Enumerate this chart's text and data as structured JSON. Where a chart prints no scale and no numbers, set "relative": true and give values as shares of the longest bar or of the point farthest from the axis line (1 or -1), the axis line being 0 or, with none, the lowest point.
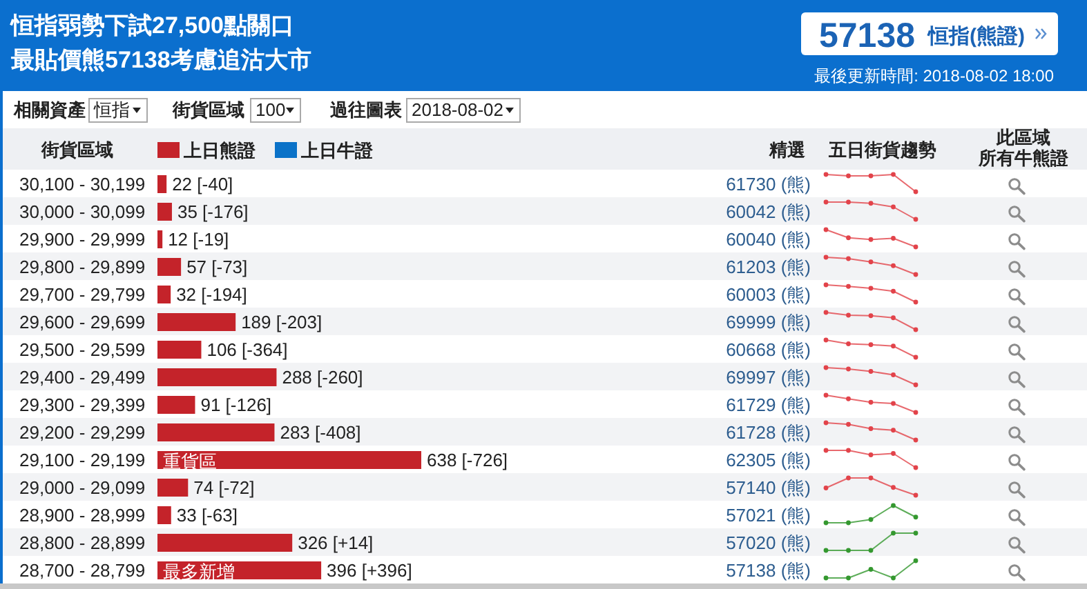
{
  "chart_data": [
    {
      "type": "bar",
      "orientation": "horizontal",
      "title": "恒指弱勢下試27,500點關口",
      "subtitle": "最貼價熊57138考慮追沽大市",
      "ylabel": "街貨區域",
      "legend": "top left",
      "categories": [
        "30,100 - 30,199",
        "30,000 - 30,099",
        "29,900 - 29,999",
        "29,800 - 29,899",
        "29,700 - 29,799",
        "29,600 - 29,699",
        "29,500 - 29,599",
        "29,400 - 29,499",
        "29,300 - 29,399",
        "29,200 - 29,299",
        "29,100 - 29,199",
        "29,000 - 29,099",
        "28,900 - 28,999",
        "28,800 - 28,899",
        "28,700 - 28,799"
      ],
      "series": [
        {
          "name": "上日熊證",
          "color": "#c4232a",
          "values": [
            22,
            35,
            12,
            57,
            32,
            189,
            106,
            288,
            91,
            283,
            638,
            74,
            33,
            326,
            396
          ],
          "value_labels": [
            "22 [-40]",
            "35 [-176]",
            "12 [-19]",
            "57 [-73]",
            "32 [-194]",
            "189 [-203]",
            "106 [-364]",
            "288 [-260]",
            "91 [-126]",
            "283 [-408]",
            "638 [-726]",
            "74 [-72]",
            "33 [-63]",
            "326 [+14]",
            "396 [+396]"
          ]
        },
        {
          "name": "上日牛證",
          "color": "#0a72c8",
          "values": [
            null,
            null,
            null,
            null,
            null,
            null,
            null,
            null,
            null,
            null,
            null,
            null,
            null,
            null,
            null
          ]
        }
      ],
      "annotations": [
        "57138",
        "恒指(熊證)",
        "最後更新時間: 2018-08-02 18:00",
        "相關資產",
        "恒指",
        "街貨區域",
        "100",
        "過往圖表",
        "2018-08-02",
        "精選",
        "五日街貨趨勢",
        "此區域",
        "所有牛熊證",
        "61730 (熊)",
        "60042 (熊)",
        "60040 (熊)",
        "61203 (熊)",
        "60003 (熊)",
        "69999 (熊)",
        "60668 (熊)",
        "69997 (熊)",
        "61729 (熊)",
        "61728 (熊)",
        "62305 (熊)",
        "57140 (熊)",
        "57021 (熊)",
        "57020 (熊)",
        "57138 (熊)",
        {
          "text": "重貨區",
          "x": 0,
          "y": "29,100 - 29,199"
        },
        {
          "text": "最多新增",
          "x": 0,
          "y": "28,700 - 28,799"
        }
      ]
    },
    {
      "type": "line",
      "relative": true,
      "marker": "circle",
      "color": "#e2434a",
      "categories": [
        null,
        null,
        null,
        null,
        null
      ],
      "values": [
        1,
        0.92,
        0.92,
        1,
        0
      ]
    },
    {
      "type": "line",
      "relative": true,
      "marker": "circle",
      "color": "#e2434a",
      "categories": [
        null,
        null,
        null,
        null,
        null
      ],
      "values": [
        1,
        1,
        0.93,
        0.72,
        0
      ]
    },
    {
      "type": "line",
      "relative": true,
      "marker": "circle",
      "color": "#e2434a",
      "categories": [
        null,
        null,
        null,
        null,
        null
      ],
      "values": [
        1,
        0.53,
        0.43,
        0.5,
        0
      ]
    },
    {
      "type": "line",
      "relative": true,
      "marker": "circle",
      "color": "#e2434a",
      "categories": [
        null,
        null,
        null,
        null,
        null
      ],
      "values": [
        1,
        0.92,
        0.73,
        0.51,
        0
      ]
    },
    {
      "type": "line",
      "relative": true,
      "marker": "circle",
      "color": "#e2434a",
      "categories": [
        null,
        null,
        null,
        null,
        null
      ],
      "values": [
        1,
        0.91,
        0.8,
        0.63,
        0
      ]
    },
    {
      "type": "line",
      "relative": true,
      "marker": "circle",
      "color": "#e2434a",
      "categories": [
        null,
        null,
        null,
        null,
        null
      ],
      "values": [
        1,
        0.84,
        0.81,
        0.69,
        0
      ]
    },
    {
      "type": "line",
      "relative": true,
      "marker": "circle",
      "color": "#e2434a",
      "categories": [
        null,
        null,
        null,
        null,
        null
      ],
      "values": [
        1,
        0.78,
        0.73,
        0.65,
        0
      ]
    },
    {
      "type": "line",
      "relative": true,
      "marker": "circle",
      "color": "#e2434a",
      "categories": [
        null,
        null,
        null,
        null,
        null
      ],
      "values": [
        1,
        0.92,
        0.78,
        0.58,
        0
      ]
    },
    {
      "type": "line",
      "relative": true,
      "marker": "circle",
      "color": "#e2434a",
      "categories": [
        null,
        null,
        null,
        null,
        null
      ],
      "values": [
        1,
        0.79,
        0.59,
        0.52,
        0
      ]
    },
    {
      "type": "line",
      "relative": true,
      "marker": "circle",
      "color": "#e2434a",
      "categories": [
        null,
        null,
        null,
        null,
        null
      ],
      "values": [
        1,
        0.91,
        0.66,
        0.57,
        0
      ]
    },
    {
      "type": "line",
      "relative": true,
      "marker": "circle",
      "color": "#e2434a",
      "categories": [
        null,
        null,
        null,
        null,
        null
      ],
      "values": [
        1,
        1,
        0.74,
        0.82,
        0
      ]
    },
    {
      "type": "line",
      "relative": true,
      "marker": "circle",
      "color": "#e2434a",
      "categories": [
        null,
        null,
        null,
        null,
        null
      ],
      "values": [
        0.42,
        1,
        1,
        0.45,
        0
      ]
    },
    {
      "type": "line",
      "relative": true,
      "marker": "circle",
      "color": "#34982f",
      "categories": [
        null,
        null,
        null,
        null,
        null
      ],
      "values": [
        0,
        0,
        0.19,
        1,
        0.33
      ]
    },
    {
      "type": "line",
      "relative": true,
      "marker": "circle",
      "color": "#34982f",
      "categories": [
        null,
        null,
        null,
        null,
        null
      ],
      "values": [
        0,
        0,
        0,
        1,
        1
      ]
    },
    {
      "type": "line",
      "relative": true,
      "marker": "circle",
      "color": "#34982f",
      "categories": [
        null,
        null,
        null,
        null,
        null
      ],
      "values": [
        0,
        0,
        0.5,
        0,
        1
      ]
    }
  ]
}
